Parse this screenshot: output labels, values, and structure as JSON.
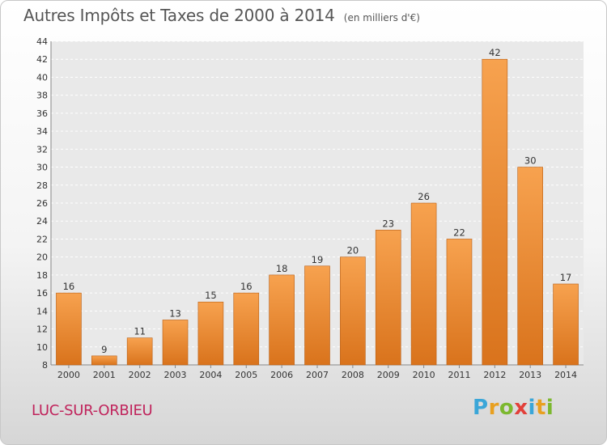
{
  "title": "Autres Impôts et Taxes de 2000 à 2014",
  "unit": "(en milliers d'€)",
  "commune": "LUC-SUR-ORBIEU",
  "brand": {
    "letters": [
      "P",
      "r",
      "o",
      "x",
      "i",
      "t",
      "i"
    ],
    "colors": [
      "#3aa6d8",
      "#e8a020",
      "#7cb82f",
      "#e2403a",
      "#3aa6d8",
      "#e8a020",
      "#7cb82f"
    ]
  },
  "colors": {
    "bar_light": "#f7a24f",
    "bar_dark": "#d9731c",
    "bar_edge": "#b85e14"
  },
  "chart_data": {
    "type": "bar",
    "title": "Autres Impôts et Taxes de 2000 à 2014",
    "subtitle": "(en milliers d'€)",
    "categories": [
      "2000",
      "2001",
      "2002",
      "2003",
      "2004",
      "2005",
      "2006",
      "2007",
      "2008",
      "2009",
      "2010",
      "2011",
      "2012",
      "2013",
      "2014"
    ],
    "values": [
      16,
      9,
      11,
      13,
      15,
      16,
      18,
      19,
      20,
      23,
      26,
      22,
      42,
      30,
      17
    ],
    "ylim": [
      8,
      44
    ],
    "yticks": [
      8,
      10,
      12,
      14,
      16,
      18,
      20,
      22,
      24,
      26,
      28,
      30,
      32,
      34,
      36,
      38,
      40,
      42,
      44
    ],
    "grid": true,
    "legend": "none"
  }
}
